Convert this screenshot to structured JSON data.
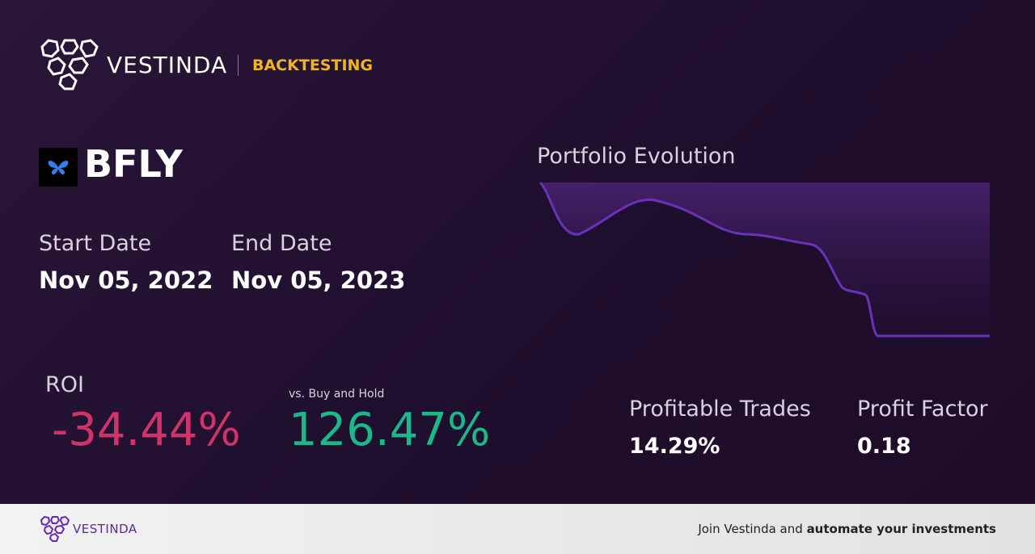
{
  "header": {
    "brand": "VESTINDA",
    "section": "BACKTESTING"
  },
  "ticker": "BFLY",
  "dates": {
    "start_label": "Start Date",
    "start": "Nov 05, 2022",
    "end_label": "End Date",
    "end": "Nov 05, 2023"
  },
  "roi": {
    "label": "ROI",
    "value": "-34.44%",
    "compare_label": "vs. Buy and Hold",
    "compare_value": "126.47%"
  },
  "portfolio": {
    "title": "Portfolio Evolution"
  },
  "stats": [
    {
      "label": "Profitable Trades",
      "value": "14.29%"
    },
    {
      "label": "Profit Factor",
      "value": "0.18"
    }
  ],
  "footer": {
    "brand": "VESTINDA",
    "text": "Join Vestinda and",
    "bold": "automate your investments"
  }
}
